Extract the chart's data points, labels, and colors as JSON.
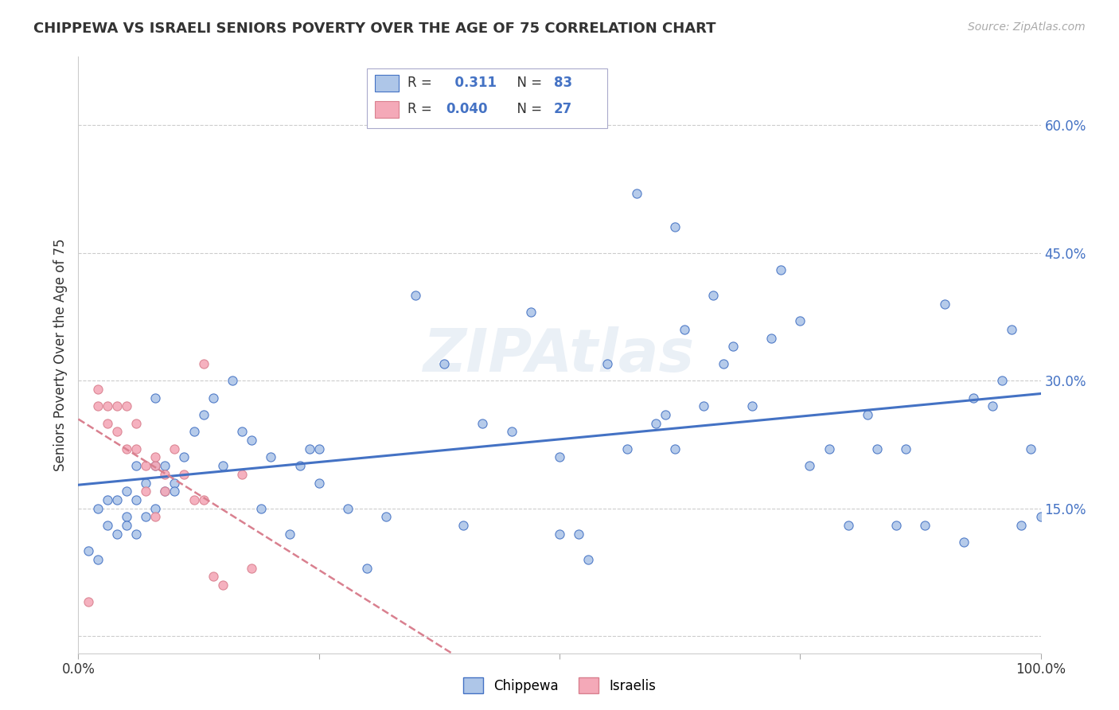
{
  "title": "CHIPPEWA VS ISRAELI SENIORS POVERTY OVER THE AGE OF 75 CORRELATION CHART",
  "source_text": "Source: ZipAtlas.com",
  "ylabel": "Seniors Poverty Over the Age of 75",
  "xlim": [
    0.0,
    1.0
  ],
  "ylim": [
    -0.02,
    0.68
  ],
  "xticks": [
    0.0,
    0.25,
    0.5,
    0.75,
    1.0
  ],
  "xtick_labels": [
    "0.0%",
    "",
    "",
    "",
    "100.0%"
  ],
  "yticks": [
    0.0,
    0.15,
    0.3,
    0.45,
    0.6
  ],
  "ytick_labels": [
    "",
    "15.0%",
    "30.0%",
    "45.0%",
    "60.0%"
  ],
  "grid_color": "#cccccc",
  "background_color": "#ffffff",
  "chippewa_color": "#aec6e8",
  "israeli_color": "#f4a9b8",
  "chippewa_line_color": "#4472c4",
  "israeli_line_color": "#d9808f",
  "chippewa_R": 0.311,
  "chippewa_N": 83,
  "israeli_R": 0.04,
  "israeli_N": 27,
  "watermark": "ZIPAtlas",
  "legend_label_chippewa": "Chippewa",
  "legend_label_israeli": "Israelis",
  "chippewa_x": [
    0.01,
    0.02,
    0.02,
    0.03,
    0.03,
    0.04,
    0.04,
    0.05,
    0.05,
    0.05,
    0.06,
    0.06,
    0.06,
    0.07,
    0.07,
    0.08,
    0.08,
    0.08,
    0.09,
    0.09,
    0.1,
    0.1,
    0.11,
    0.12,
    0.13,
    0.14,
    0.15,
    0.16,
    0.17,
    0.18,
    0.19,
    0.2,
    0.22,
    0.23,
    0.24,
    0.25,
    0.28,
    0.3,
    0.32,
    0.35,
    0.38,
    0.4,
    0.42,
    0.45,
    0.47,
    0.5,
    0.5,
    0.52,
    0.53,
    0.55,
    0.57,
    0.58,
    0.6,
    0.61,
    0.62,
    0.63,
    0.65,
    0.66,
    0.67,
    0.68,
    0.7,
    0.72,
    0.73,
    0.75,
    0.76,
    0.78,
    0.8,
    0.82,
    0.83,
    0.85,
    0.86,
    0.88,
    0.9,
    0.92,
    0.93,
    0.95,
    0.96,
    0.97,
    0.98,
    0.99,
    1.0,
    0.62,
    0.25
  ],
  "chippewa_y": [
    0.1,
    0.15,
    0.09,
    0.16,
    0.13,
    0.16,
    0.12,
    0.17,
    0.14,
    0.13,
    0.2,
    0.16,
    0.12,
    0.18,
    0.14,
    0.28,
    0.2,
    0.15,
    0.2,
    0.17,
    0.18,
    0.17,
    0.21,
    0.24,
    0.26,
    0.28,
    0.2,
    0.3,
    0.24,
    0.23,
    0.15,
    0.21,
    0.12,
    0.2,
    0.22,
    0.22,
    0.15,
    0.08,
    0.14,
    0.4,
    0.32,
    0.13,
    0.25,
    0.24,
    0.38,
    0.21,
    0.12,
    0.12,
    0.09,
    0.32,
    0.22,
    0.52,
    0.25,
    0.26,
    0.22,
    0.36,
    0.27,
    0.4,
    0.32,
    0.34,
    0.27,
    0.35,
    0.43,
    0.37,
    0.2,
    0.22,
    0.13,
    0.26,
    0.22,
    0.13,
    0.22,
    0.13,
    0.39,
    0.11,
    0.28,
    0.27,
    0.3,
    0.36,
    0.13,
    0.22,
    0.14,
    0.48,
    0.18
  ],
  "israeli_x": [
    0.01,
    0.02,
    0.02,
    0.03,
    0.03,
    0.04,
    0.04,
    0.05,
    0.05,
    0.06,
    0.06,
    0.07,
    0.07,
    0.08,
    0.08,
    0.08,
    0.09,
    0.09,
    0.1,
    0.11,
    0.12,
    0.13,
    0.13,
    0.14,
    0.15,
    0.17,
    0.18
  ],
  "israeli_y": [
    0.04,
    0.29,
    0.27,
    0.27,
    0.25,
    0.24,
    0.27,
    0.22,
    0.27,
    0.22,
    0.25,
    0.2,
    0.17,
    0.2,
    0.21,
    0.14,
    0.19,
    0.17,
    0.22,
    0.19,
    0.16,
    0.16,
    0.32,
    0.07,
    0.06,
    0.19,
    0.08
  ]
}
